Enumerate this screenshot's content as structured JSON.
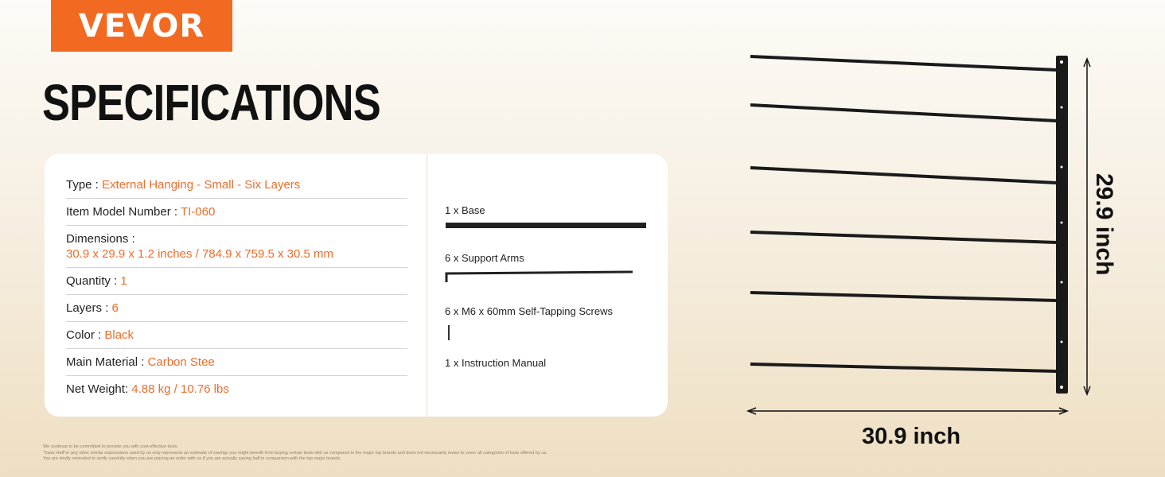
{
  "brand": "VEVOR",
  "title": "SPECIFICATIONS",
  "specs": [
    {
      "label": "Type : ",
      "value": "External Hanging - Small - Six Layers"
    },
    {
      "label": "Item Model Number : ",
      "value": "TI-060"
    },
    {
      "label": "Dimensions :",
      "value": "30.9 x 29.9 x 1.2 inches / 784.9 x 759.5 x 30.5 mm"
    },
    {
      "label": "Quantity : ",
      "value": "1"
    },
    {
      "label": "Layers : ",
      "value": "6"
    },
    {
      "label": "Color : ",
      "value": "Black"
    },
    {
      "label": "Main Material : ",
      "value": "Carbon Stee"
    },
    {
      "label": "Net Weight: ",
      "value": "4.88 kg / 10.76 lbs"
    }
  ],
  "package": [
    "1 x Base",
    "6 x Support Arms",
    "6 x M6 x 60mm Self-Tapping Screws",
    "1 x Instruction Manual"
  ],
  "dimensions": {
    "height": "29.9 inch",
    "width": "30.9 inch"
  },
  "footnote": [
    "We continue to be committed to provide you with cost-effective tools.",
    "\"Save Half\"or any other similar expressions used by us only represents an estimate of savings you might benefit from buying certain tools with us compared to the major top brands and does not necessarily mean to cover all categories of tools offered by us.",
    "You are kindly reminded to verify carefully when you are placing an order with us if you are actually saving half in comparison with the top major brands."
  ],
  "colors": {
    "accent": "#f26a21",
    "value_text": "#ef6c2a"
  }
}
